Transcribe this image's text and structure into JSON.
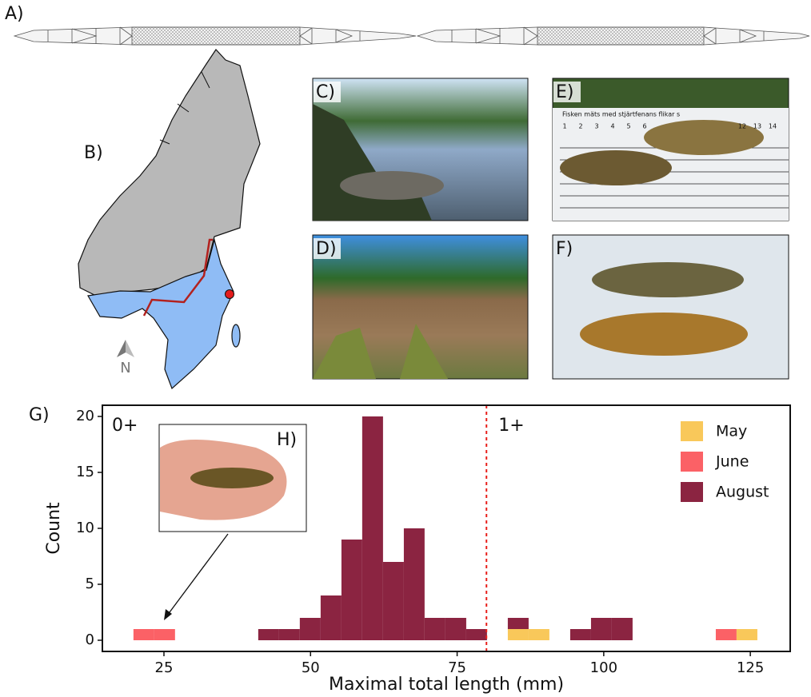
{
  "panel_labels": {
    "A": "A)",
    "B": "B)",
    "C": "C)",
    "D": "D)",
    "E": "E)",
    "F": "F)",
    "G": "G)",
    "H": "H)"
  },
  "map": {
    "north": "N"
  },
  "photo_E": {
    "ruler_caption": "Fisken mäts med stjärtfenans flikar s",
    "ruler_numbers": [
      "1",
      "2",
      "3",
      "4",
      "5",
      "6",
      "12",
      "13",
      "14"
    ]
  },
  "chart_data": {
    "type": "histogram",
    "stacked": true,
    "xlabel": "Maximal total length (mm)",
    "ylabel": "Count",
    "bins": [
      19.8,
      23.35,
      26.89,
      30.44,
      33.99,
      37.53,
      41.08,
      44.63,
      48.17,
      51.72,
      55.27,
      58.81,
      62.36,
      65.91,
      69.45,
      73.0,
      76.55,
      80.09,
      83.64,
      87.19,
      90.73,
      94.28,
      97.83,
      101.37,
      104.92,
      108.47,
      112.01,
      115.56,
      119.11,
      122.65,
      126.2
    ],
    "series": [
      {
        "name": "May",
        "color": "#f9c85a",
        "values": [
          0,
          0,
          0,
          0,
          0,
          0,
          0,
          0,
          0,
          0,
          0,
          0,
          0,
          0,
          0,
          0,
          0,
          0,
          1,
          1,
          0,
          0,
          0,
          0,
          0,
          0,
          0,
          0,
          0,
          1
        ]
      },
      {
        "name": "June",
        "color": "#fb6166",
        "values": [
          1,
          1,
          0,
          0,
          0,
          0,
          0,
          0,
          0,
          0,
          0,
          0,
          0,
          0,
          0,
          0,
          0,
          0,
          0,
          0,
          0,
          0,
          0,
          0,
          0,
          0,
          0,
          0,
          1,
          0
        ]
      },
      {
        "name": "August",
        "color": "#8b2441",
        "values": [
          0,
          0,
          0,
          0,
          0,
          0,
          1,
          1,
          2,
          4,
          9,
          20,
          7,
          10,
          2,
          2,
          1,
          0,
          1,
          0,
          0,
          1,
          2,
          2,
          0,
          0,
          0,
          0,
          0,
          0
        ]
      }
    ],
    "xlim": [
      14.5,
      131.8
    ],
    "ylim": [
      -1,
      21
    ],
    "xticks": [
      25,
      50,
      75,
      100,
      125
    ],
    "yticks": [
      0,
      5,
      10,
      15,
      20
    ],
    "vline": {
      "x": 80,
      "color": "#e8201c"
    },
    "annotations": {
      "left": "0+",
      "right": "1+"
    },
    "legend": "upper right"
  }
}
